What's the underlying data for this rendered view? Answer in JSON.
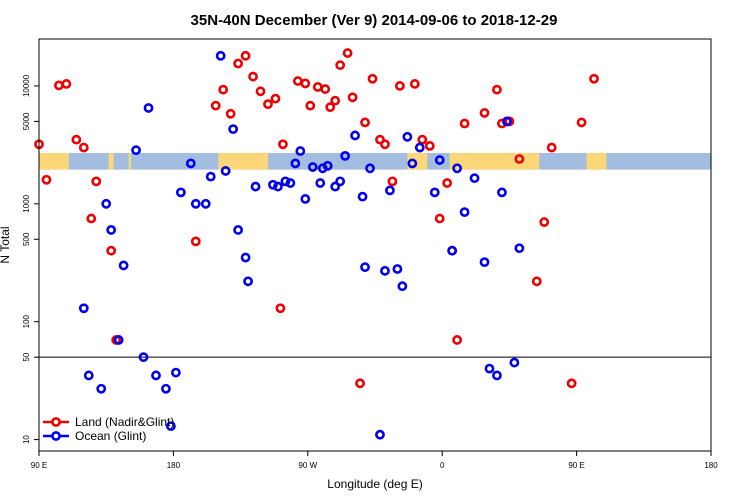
{
  "chart_data": {
    "type": "scatter",
    "title": "35N-40N December (Ver 9)   2014-09-06 to 2018-12-29",
    "xlabel": "Longitude (deg E)",
    "ylabel": "N Total",
    "x_scale": "linear",
    "y_scale": "log",
    "xlim": [
      -90,
      180
    ],
    "ylim": [
      8,
      25000
    ],
    "x_ticks": [
      {
        "value": -90,
        "label": "90 E"
      },
      {
        "value": -36,
        "label": "180"
      },
      {
        "value": 18,
        "label": "90 W"
      },
      {
        "value": 72,
        "label": "0"
      },
      {
        "value": 126,
        "label": "90 E"
      },
      {
        "value": 180,
        "label": "180"
      }
    ],
    "y_ticks": [
      {
        "value": 10,
        "label": "10"
      },
      {
        "value": 50,
        "label": "50"
      },
      {
        "value": 100,
        "label": "100"
      },
      {
        "value": 500,
        "label": "500"
      },
      {
        "value": 1000,
        "label": "1000"
      },
      {
        "value": 5000,
        "label": "5000"
      },
      {
        "value": 10000,
        "label": "10000"
      }
    ],
    "reference_line": {
      "y": 50
    },
    "map_band": {
      "y_low": 1950,
      "y_high": 2700,
      "ocean_color": "#a2bde0",
      "land_color": "#fcd77a",
      "land_segments": [
        [
          -90,
          -78
        ],
        [
          -62,
          -60
        ],
        [
          -54,
          -53
        ],
        [
          -18,
          2
        ],
        [
          58,
          66
        ],
        [
          75,
          111
        ],
        [
          130,
          138
        ]
      ]
    },
    "legend": {
      "position": "bottom-left",
      "entries": [
        "Land (Nadir&Glint)",
        "Ocean (Glint)"
      ]
    },
    "series": [
      {
        "name": "Land (Nadir&Glint)",
        "color": "#ee0000",
        "x": [
          -90,
          -87,
          -82,
          -79,
          -75,
          -72,
          -69,
          -67,
          -61,
          -59,
          -27,
          -19,
          -16,
          -13,
          -10,
          -7,
          -4,
          -1,
          2,
          5,
          7,
          8,
          14,
          17,
          19,
          22,
          25,
          27,
          29,
          31,
          34,
          36,
          39,
          41,
          44,
          47,
          49,
          52,
          55,
          61,
          64,
          67,
          71,
          74,
          76,
          78,
          81,
          89,
          94,
          96,
          99,
          103,
          110,
          113,
          116,
          124,
          128,
          133
        ],
        "y": [
          3200,
          1600,
          10100,
          10400,
          3500,
          3000,
          750,
          1550,
          400,
          70,
          480,
          6800,
          9300,
          5800,
          15500,
          18000,
          12000,
          9000,
          7000,
          7800,
          130,
          3200,
          11000,
          10500,
          6800,
          9800,
          9400,
          6600,
          7500,
          15000,
          19000,
          8000,
          30,
          4900,
          11500,
          3500,
          3200,
          1550,
          10000,
          10400,
          3500,
          3100,
          750,
          1500,
          400,
          70,
          4800,
          5900,
          9300,
          4800,
          5000,
          2400,
          220,
          700,
          3000,
          30,
          4900,
          11500
        ]
      },
      {
        "name": "Ocean (Glint)",
        "color": "#0000ee",
        "x": [
          -72,
          -70,
          -65,
          -63,
          -61,
          -58,
          -56,
          -51,
          -48,
          -46,
          -43,
          -39,
          -37,
          -35,
          -33,
          -29,
          -27,
          -23,
          -21,
          -17,
          -15,
          -12,
          -10,
          -7,
          -6,
          -3,
          4,
          6,
          9,
          11,
          13,
          15,
          17,
          20,
          23,
          24,
          26,
          29,
          31,
          33,
          37,
          40,
          41,
          43,
          47,
          49,
          51,
          54,
          56,
          58,
          60,
          63,
          69,
          71,
          76,
          78,
          81,
          85,
          89,
          91,
          94,
          96,
          98,
          101,
          103
        ],
        "y": [
          130,
          35,
          27,
          1000,
          600,
          70,
          300,
          2850,
          50,
          6500,
          35,
          27,
          13,
          37,
          1250,
          2200,
          1000,
          1000,
          1700,
          18000,
          1900,
          4300,
          600,
          350,
          220,
          1400,
          1450,
          1400,
          1550,
          1500,
          2200,
          2800,
          1100,
          2050,
          1500,
          2000,
          2100,
          1400,
          1550,
          2550,
          3800,
          1150,
          290,
          2000,
          11,
          270,
          1300,
          280,
          200,
          3700,
          2200,
          3000,
          1250,
          2350,
          400,
          2000,
          850,
          1650,
          320,
          40,
          35,
          1250,
          5000,
          45,
          420
        ]
      }
    ]
  }
}
